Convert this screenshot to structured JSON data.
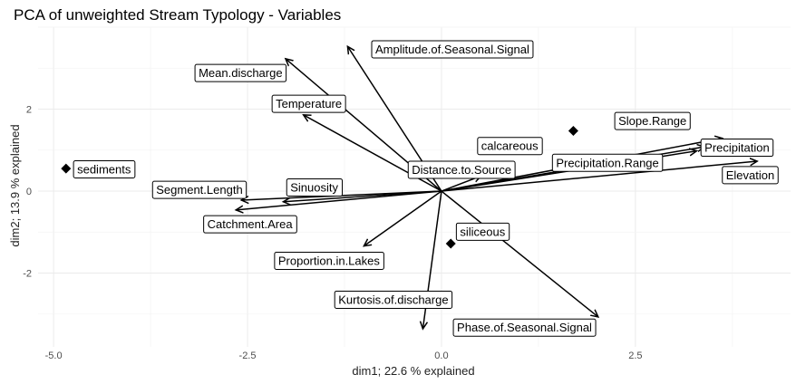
{
  "chart_data": {
    "type": "scatter",
    "title": "PCA of unweighted Stream Typology - Variables",
    "xlabel": "dim1; 22.6 % explained",
    "ylabel": "dim2; 13.9 % explained",
    "xlim": [
      -5.2,
      4.5
    ],
    "ylim": [
      -3.8,
      4.0
    ],
    "x_ticks": [
      -5.0,
      -2.5,
      0.0,
      2.5
    ],
    "x_tick_labels": [
      "-5.0",
      "-2.5",
      "0.0",
      "2.5"
    ],
    "y_ticks": [
      -2,
      0,
      2
    ],
    "y_tick_labels": [
      "-2",
      "0",
      "2"
    ],
    "grid": true,
    "variables": [
      {
        "name": "Amplitude.of.Seasonal.Signal",
        "x": -1.21,
        "y": 3.53,
        "label_x": 0.14,
        "label_y": 3.46
      },
      {
        "name": "Mean.discharge",
        "x": -2.01,
        "y": 3.23,
        "label_x": -2.59,
        "label_y": 2.88
      },
      {
        "name": "Temperature",
        "x": -1.78,
        "y": 1.86,
        "label_x": -1.71,
        "label_y": 2.13
      },
      {
        "name": "Slope.Range",
        "x": 3.62,
        "y": 1.29,
        "label_x": 2.72,
        "label_y": 1.71
      },
      {
        "name": "Precipitation",
        "x": 3.39,
        "y": 1.08,
        "label_x": 3.81,
        "label_y": 1.06
      },
      {
        "name": "Precipitation.Range",
        "x": 3.29,
        "y": 0.98,
        "label_x": 2.14,
        "label_y": 0.69
      },
      {
        "name": "Elevation",
        "x": 4.07,
        "y": 0.73,
        "label_x": 3.98,
        "label_y": 0.39
      },
      {
        "name": "Distance.to.Source",
        "x": 0.51,
        "y": 0.37,
        "label_x": 0.26,
        "label_y": 0.52
      },
      {
        "name": "Segment.Length",
        "x": -2.58,
        "y": -0.22,
        "label_x": -3.12,
        "label_y": 0.03
      },
      {
        "name": "Sinuosity",
        "x": -2.04,
        "y": -0.26,
        "label_x": -1.64,
        "label_y": 0.09
      },
      {
        "name": "Catchment.Area",
        "x": -2.65,
        "y": -0.46,
        "label_x": -2.47,
        "label_y": -0.81
      },
      {
        "name": "Proportion.in.Lakes",
        "x": -1.0,
        "y": -1.34,
        "label_x": -1.45,
        "label_y": -1.7
      },
      {
        "name": "Kurtosis.of.discharge",
        "x": -0.24,
        "y": -3.36,
        "label_x": -0.62,
        "label_y": -2.65
      },
      {
        "name": "Phase.of.Seasonal.Signal",
        "x": 2.02,
        "y": -3.07,
        "label_x": 1.07,
        "label_y": -3.33
      }
    ],
    "supplementary_points": [
      {
        "name": "sediments",
        "x": -4.84,
        "y": 0.55,
        "label_x": -4.35,
        "label_y": 0.53
      },
      {
        "name": "calcareous",
        "x": 1.7,
        "y": 1.47,
        "label_x": 0.88,
        "label_y": 1.1
      },
      {
        "name": "siliceous",
        "x": 0.12,
        "y": -1.28,
        "label_x": 0.53,
        "label_y": -0.99
      }
    ]
  }
}
